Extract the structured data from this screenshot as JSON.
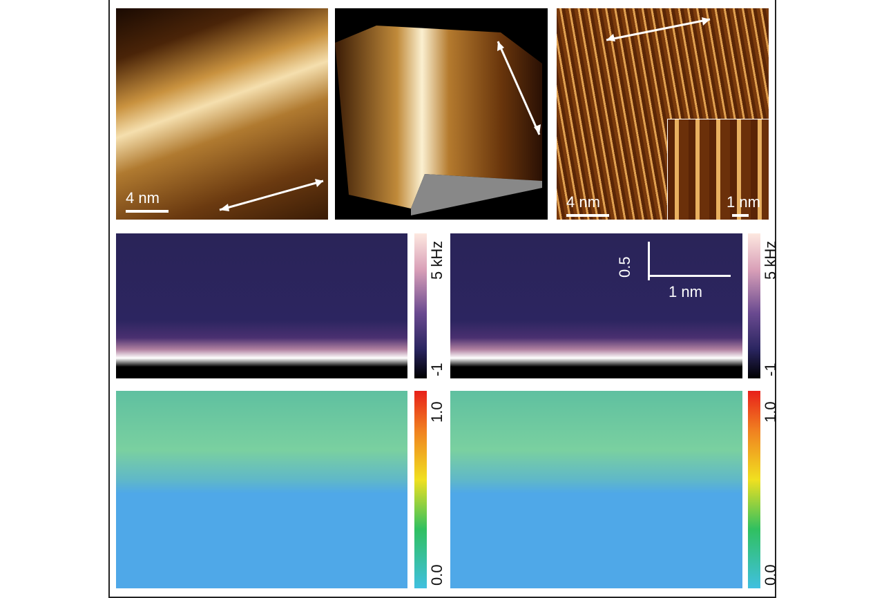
{
  "top_row": {
    "panel_1": {
      "scale_bar": "4 nm"
    },
    "panel_2": {},
    "panel_3": {
      "scale_bar": "4 nm",
      "inset_scale_bar": "1 nm"
    }
  },
  "middle_row": {
    "colorbar_max": "5 kHz",
    "colorbar_min": "-1",
    "scale_vertical": "0.5",
    "scale_horizontal": "1 nm"
  },
  "bottom_row": {
    "colorbar_max": "1.0",
    "colorbar_min": "0.0"
  },
  "colors": {
    "afm_dark": "#3a1a05",
    "afm_light": "#f3d9a0",
    "freq_bg": "#2b2460",
    "density_bg": "#4fa8e8"
  }
}
